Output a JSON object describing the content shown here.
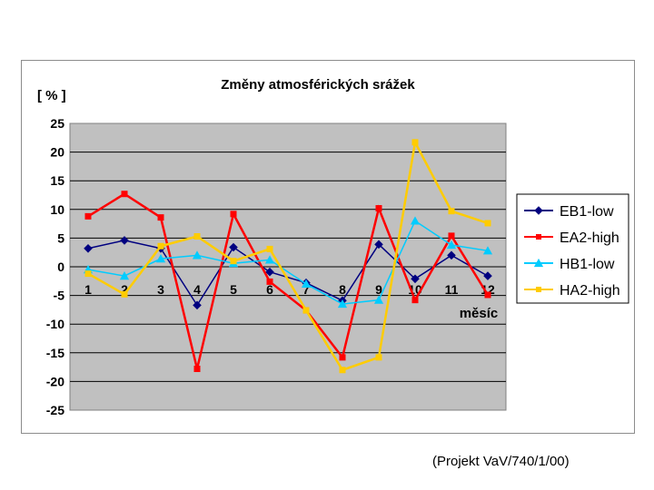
{
  "source_note": "(Projekt VaV/740/1/00)",
  "chart_data": {
    "type": "line",
    "title": "Změny atmosférických srážek",
    "ylabel": "[ % ]",
    "xlabel": "měsíc",
    "categories": [
      "1",
      "2",
      "3",
      "4",
      "5",
      "6",
      "7",
      "8",
      "9",
      "10",
      "11",
      "12"
    ],
    "ylim": [
      -25,
      25
    ],
    "yticks": [
      25,
      20,
      15,
      10,
      5,
      0,
      -5,
      -10,
      -15,
      -20,
      -25
    ],
    "grid": true,
    "legend_position": "right",
    "plot_background": "#c0c0c0",
    "series": [
      {
        "name": "EB1-low",
        "color": "#000080",
        "marker": "diamond",
        "values": [
          3.2,
          4.6,
          3.2,
          -6.7,
          3.4,
          -0.9,
          -2.8,
          -5.9,
          3.9,
          -2.1,
          2.0,
          -1.6
        ]
      },
      {
        "name": "EA2-high",
        "color": "#ff0000",
        "marker": "square",
        "values": [
          8.8,
          12.7,
          8.6,
          -17.8,
          9.2,
          -2.6,
          -7.6,
          -15.8,
          10.2,
          -5.8,
          5.4,
          -4.9
        ]
      },
      {
        "name": "HB1-low",
        "color": "#00ccff",
        "marker": "triangle",
        "values": [
          -0.5,
          -1.6,
          1.4,
          2.0,
          0.6,
          1.2,
          -3.0,
          -6.5,
          -5.8,
          8.0,
          3.8,
          2.8
        ]
      },
      {
        "name": "HA2-high",
        "color": "#ffcc00",
        "marker": "square",
        "values": [
          -1.2,
          -4.8,
          3.6,
          5.3,
          1.0,
          3.1,
          -7.6,
          -18.0,
          -15.8,
          21.7,
          9.7,
          7.6
        ]
      }
    ]
  }
}
